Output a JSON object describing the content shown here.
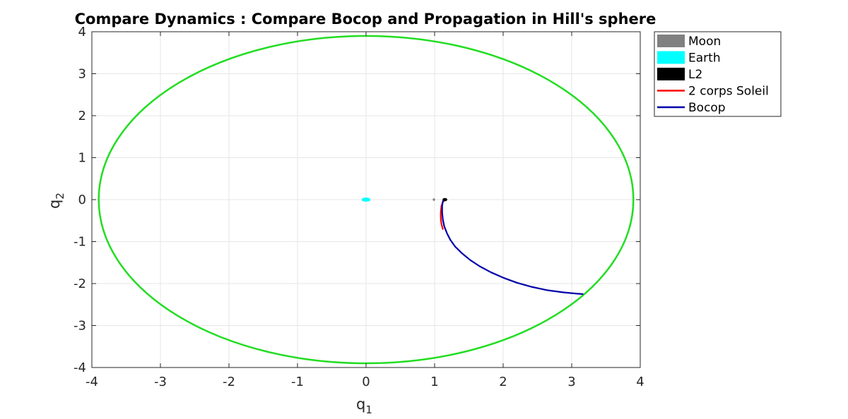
{
  "chart_data": {
    "type": "line",
    "title": "Compare Dynamics : Compare Bocop and Propagation in Hill's sphere",
    "xlabel": {
      "main": "q",
      "sub": "1"
    },
    "ylabel": {
      "main": "q",
      "sub": "2"
    },
    "xlim": [
      -4,
      4
    ],
    "ylim": [
      -4,
      4
    ],
    "xticks": [
      -4,
      -3,
      -2,
      -1,
      0,
      1,
      2,
      3,
      4
    ],
    "yticks": [
      -4,
      -3,
      -2,
      -1,
      0,
      1,
      2,
      3,
      4
    ],
    "xtick_labels": [
      "-4",
      "-3",
      "-2",
      "-1",
      "0",
      "1",
      "2",
      "3",
      "4"
    ],
    "ytick_labels": [
      "-4",
      "-3",
      "-2",
      "-1",
      "0",
      "1",
      "2",
      "3",
      "4"
    ],
    "grid": true,
    "legend_position": "outside-top-right",
    "legend": [
      {
        "label": "Moon",
        "kind": "patch",
        "color": "#808080"
      },
      {
        "label": "Earth",
        "kind": "patch",
        "color": "#00ffff"
      },
      {
        "label": "L2",
        "kind": "patch",
        "color": "#000000"
      },
      {
        "label": "2 corps Soleil",
        "kind": "line",
        "color": "#ff0000"
      },
      {
        "label": "Bocop",
        "kind": "line",
        "color": "#0000aa"
      }
    ],
    "hill_sphere": {
      "color": "#22dd22",
      "center": [
        0,
        0
      ],
      "radius_x": 3.9,
      "radius_y": 3.9
    },
    "bodies": [
      {
        "name": "Earth",
        "center": [
          0,
          0
        ],
        "radius_x": 0.06,
        "radius_y": 0.04,
        "color": "#00ffff"
      },
      {
        "name": "Moon",
        "center": [
          0.99,
          0
        ],
        "radius_x": 0.01,
        "radius_y": 0.01,
        "color": "#808080"
      },
      {
        "name": "L2",
        "center": [
          1.15,
          0
        ],
        "radius_x": 0.03,
        "radius_y": 0.03,
        "color": "#000000"
      }
    ],
    "series": [
      {
        "name": "2 corps Soleil",
        "color": "#ff0000",
        "x": [
          1.15,
          1.12,
          1.1,
          1.09,
          1.09,
          1.1,
          1.12
        ],
        "y": [
          0.0,
          -0.06,
          -0.15,
          -0.3,
          -0.45,
          -0.58,
          -0.7
        ]
      },
      {
        "name": "Bocop",
        "color": "#0000aa",
        "x": [
          1.13,
          1.12,
          1.11,
          1.11,
          1.12,
          1.14,
          1.18,
          1.23,
          1.3,
          1.4,
          1.52,
          1.66,
          1.82,
          2.0,
          2.2,
          2.42,
          2.65,
          2.88,
          3.07,
          3.16
        ],
        "y": [
          0.0,
          -0.05,
          -0.15,
          -0.3,
          -0.47,
          -0.63,
          -0.8,
          -0.96,
          -1.12,
          -1.28,
          -1.44,
          -1.59,
          -1.73,
          -1.86,
          -1.98,
          -2.08,
          -2.16,
          -2.21,
          -2.24,
          -2.25
        ]
      }
    ]
  }
}
